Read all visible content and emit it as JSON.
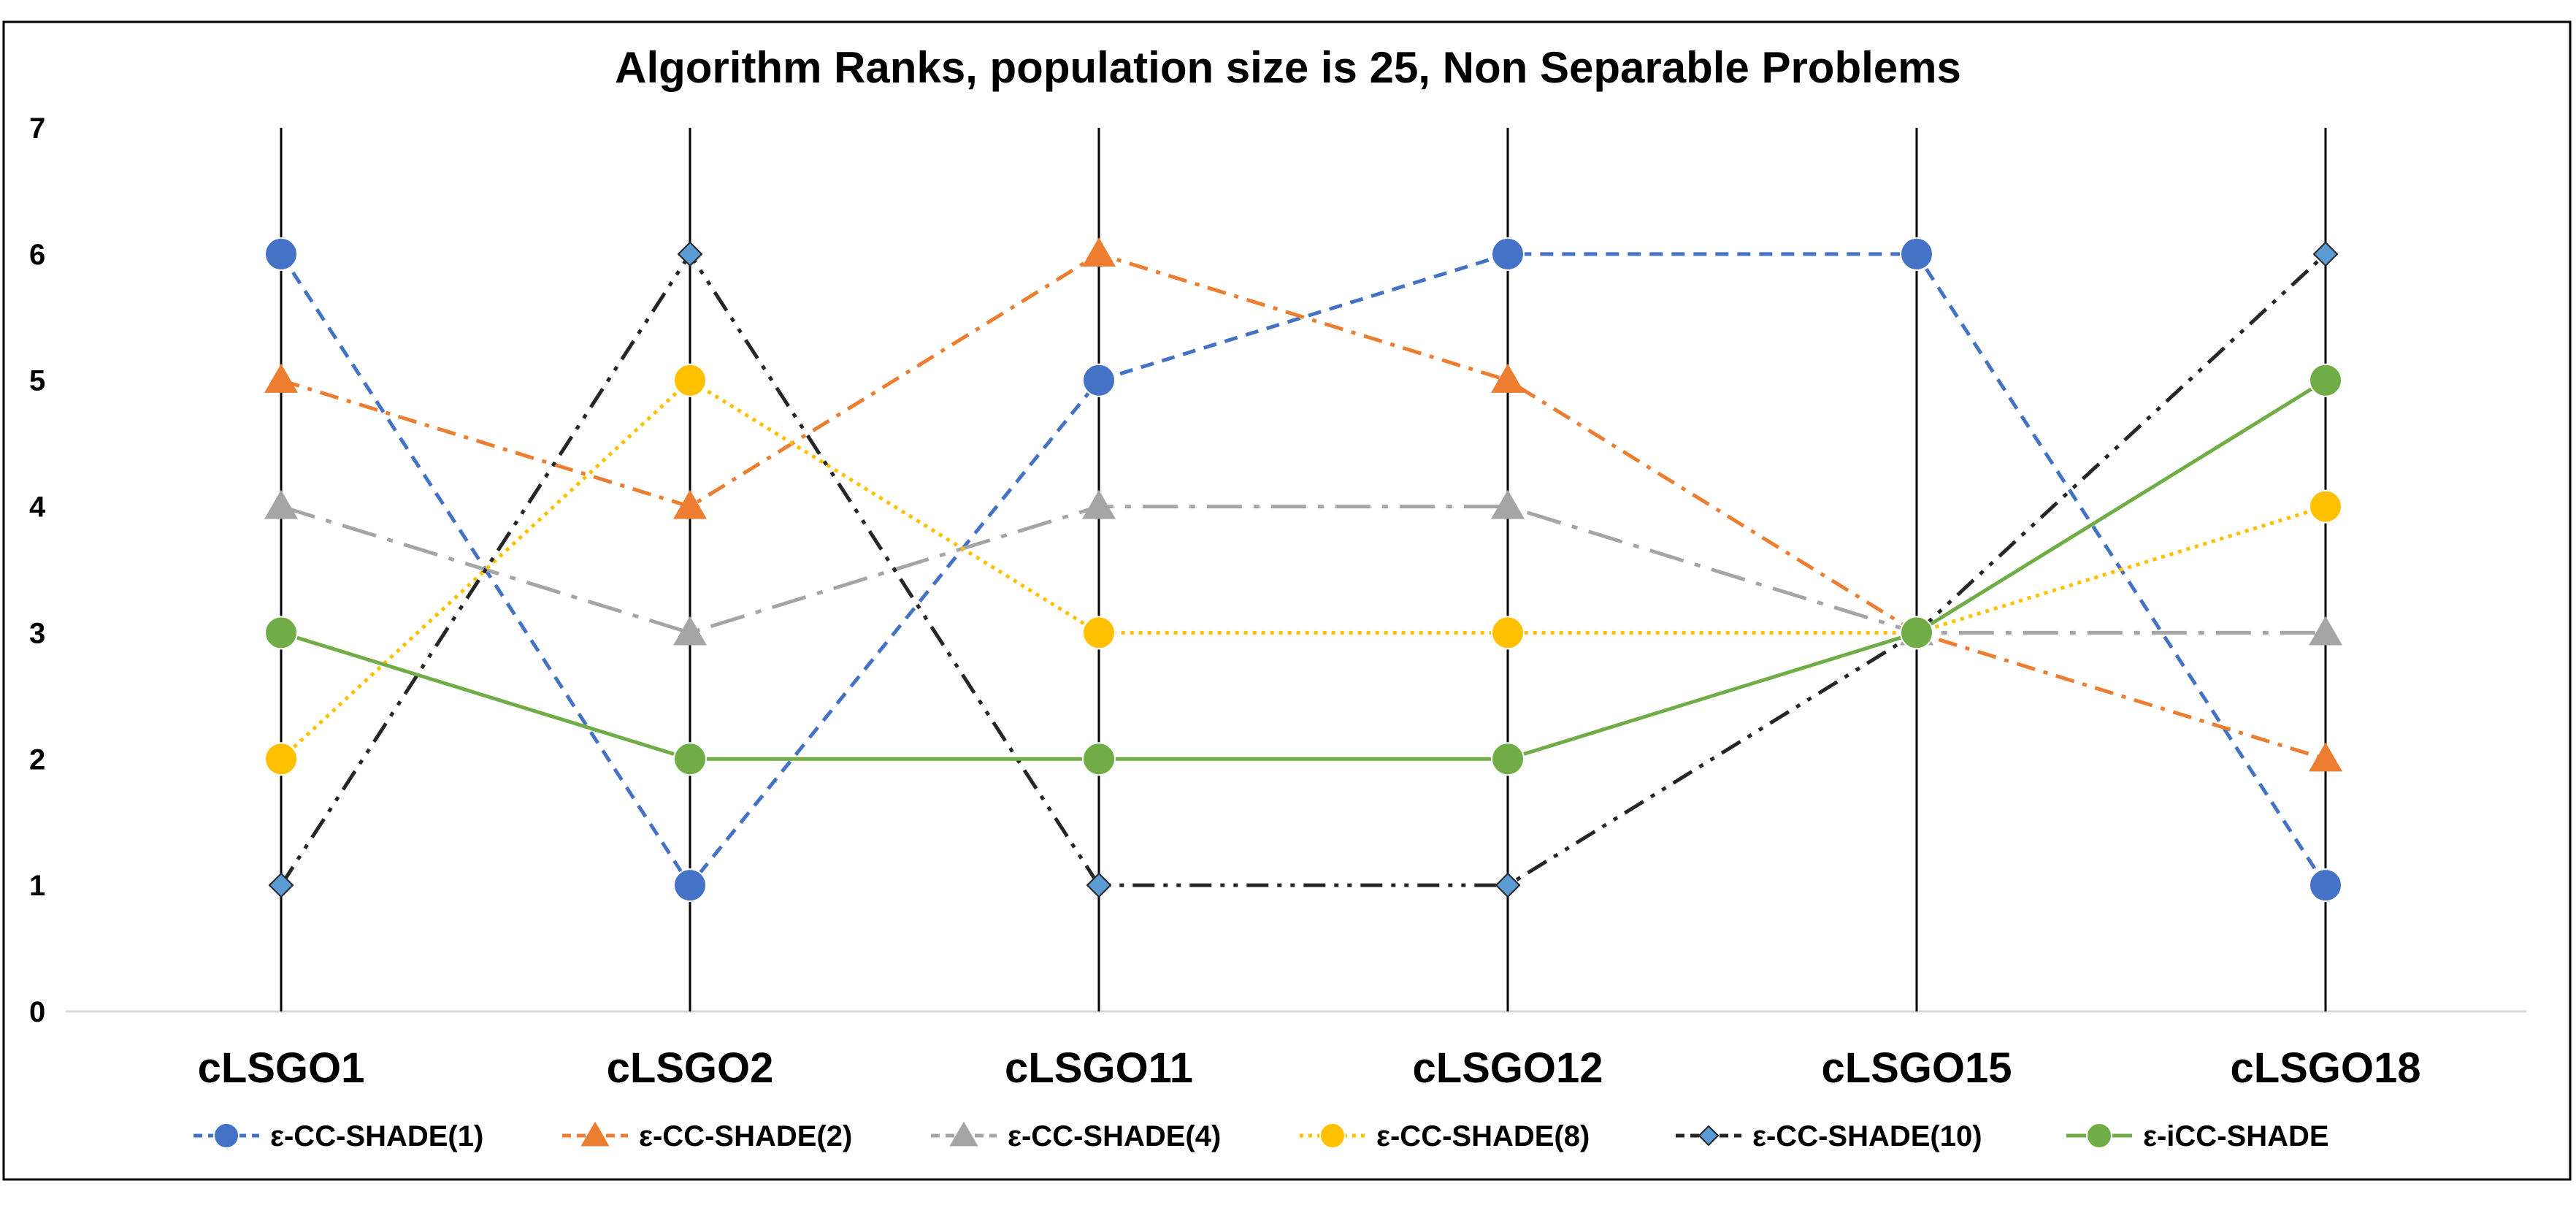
{
  "chart_data": {
    "type": "line",
    "title": "Algorithm Ranks, population size is 25, Non Separable Problems",
    "xlabel": "",
    "ylabel": "",
    "categories": [
      "cLSGO1",
      "cLSGO2",
      "cLSGO11",
      "cLSGO12",
      "cLSGO15",
      "cLSGO18"
    ],
    "ylim": [
      0,
      7
    ],
    "yticks": [
      "0",
      "1",
      "2",
      "3",
      "4",
      "5",
      "6",
      "7"
    ],
    "legend_position": "bottom",
    "series": [
      {
        "name": "ε-CC-SHADE(1)",
        "values": [
          6,
          1,
          5,
          6,
          6,
          1
        ],
        "color": "#4472C4",
        "marker": "circle",
        "dash": "dash"
      },
      {
        "name": "ε-CC-SHADE(2)",
        "values": [
          5,
          4,
          6,
          5,
          3,
          2
        ],
        "color": "#ED7D31",
        "marker": "triangle",
        "dash": "dashdot"
      },
      {
        "name": "ε-CC-SHADE(4)",
        "values": [
          4,
          3,
          4,
          4,
          3,
          3
        ],
        "color": "#A5A5A5",
        "marker": "triangle",
        "dash": "longdashdot"
      },
      {
        "name": "ε-CC-SHADE(8)",
        "values": [
          2,
          5,
          3,
          3,
          3,
          4
        ],
        "color": "#FFC000",
        "marker": "circle",
        "dash": "dot"
      },
      {
        "name": "ε-CC-SHADE(10)",
        "values": [
          1,
          6,
          1,
          1,
          3,
          6
        ],
        "color": "#262626",
        "marker": "diamond",
        "dash": "dashdotdot"
      },
      {
        "name": "ε-iCC-SHADE",
        "values": [
          3,
          2,
          2,
          2,
          3,
          5
        ],
        "color": "#70AD47",
        "marker": "circle",
        "dash": "solid"
      }
    ],
    "marker_fill": {
      "ε-CC-SHADE(10)": "#5B9BD5",
      "ε-CC-SHADE(8)": "#FFC000"
    },
    "line_width_note": "",
    "grid": false
  }
}
